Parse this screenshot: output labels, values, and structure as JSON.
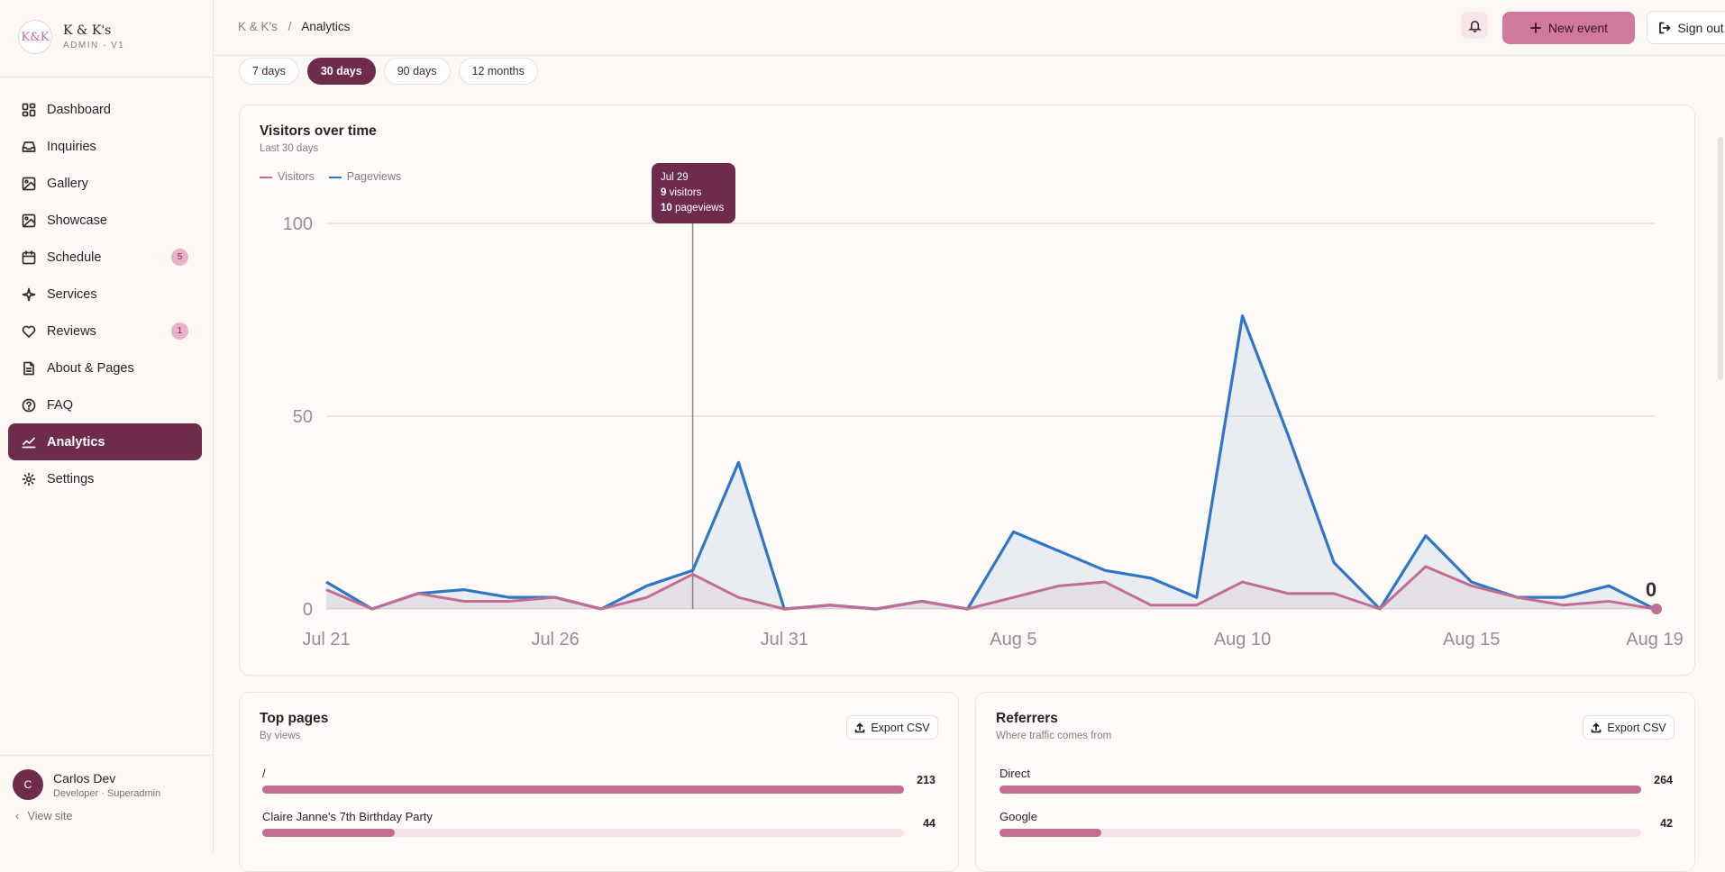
{
  "brand": {
    "name": "K & K's",
    "sub": "ADMIN · V1",
    "logo_text": "K&K"
  },
  "sidebar": {
    "items": [
      {
        "label": "Dashboard",
        "icon": "dashboard-icon"
      },
      {
        "label": "Inquiries",
        "icon": "inbox-icon"
      },
      {
        "label": "Gallery",
        "icon": "image-icon"
      },
      {
        "label": "Showcase",
        "icon": "image-icon"
      },
      {
        "label": "Schedule",
        "icon": "calendar-icon",
        "badge": "5"
      },
      {
        "label": "Services",
        "icon": "sparkle-icon"
      },
      {
        "label": "Reviews",
        "icon": "heart-icon",
        "badge": "1"
      },
      {
        "label": "About & Pages",
        "icon": "document-icon"
      },
      {
        "label": "FAQ",
        "icon": "help-circle-icon"
      },
      {
        "label": "Analytics",
        "icon": "chart-line-icon",
        "active": true
      },
      {
        "label": "Settings",
        "icon": "gear-icon"
      }
    ]
  },
  "user": {
    "initial": "C",
    "name": "Carlos Dev",
    "role": "Developer · Superadmin",
    "view_site": "View site"
  },
  "header": {
    "breadcrumb_root": "K & K's",
    "breadcrumb_sep": "/",
    "breadcrumb_current": "Analytics",
    "new_event_label": "New event",
    "sign_out_label": "Sign out"
  },
  "ranges": [
    {
      "label": "7 days"
    },
    {
      "label": "30 days",
      "active": true
    },
    {
      "label": "90 days"
    },
    {
      "label": "12 months"
    }
  ],
  "visitors_card": {
    "title": "Visitors over time",
    "subtitle": "Last 30 days",
    "tooltip": {
      "date": "Jul 29",
      "visitors_num": "9",
      "visitors_word": "visitors",
      "pageviews_num": "10",
      "pageviews_word": "pageviews"
    },
    "end_label": "0"
  },
  "chart_data": {
    "type": "area",
    "x": [
      "Jul 21",
      "Jul 22",
      "Jul 23",
      "Jul 24",
      "Jul 25",
      "Jul 26",
      "Jul 27",
      "Jul 28",
      "Jul 29",
      "Jul 30",
      "Jul 31",
      "Aug 1",
      "Aug 2",
      "Aug 3",
      "Aug 4",
      "Aug 5",
      "Aug 6",
      "Aug 7",
      "Aug 8",
      "Aug 9",
      "Aug 10",
      "Aug 11",
      "Aug 12",
      "Aug 13",
      "Aug 14",
      "Aug 15",
      "Aug 16",
      "Aug 17",
      "Aug 18",
      "Aug 19"
    ],
    "x_tick_labels": [
      "Jul 21",
      "Jul 26",
      "Jul 31",
      "Aug 5",
      "Aug 10",
      "Aug 15",
      "Aug 19"
    ],
    "series": [
      {
        "name": "Visitors",
        "color": "#c46d93",
        "values": [
          5,
          0,
          4,
          2,
          2,
          3,
          0,
          3,
          9,
          3,
          0,
          1,
          0,
          2,
          0,
          3,
          6,
          7,
          1,
          1,
          7,
          4,
          4,
          0,
          11,
          6,
          3,
          1,
          2,
          0
        ]
      },
      {
        "name": "Pageviews",
        "color": "#2f76c6",
        "values": [
          7,
          0,
          4,
          5,
          3,
          3,
          0,
          6,
          10,
          38,
          0,
          1,
          0,
          2,
          0,
          20,
          15,
          10,
          8,
          3,
          76,
          45,
          12,
          0,
          19,
          7,
          3,
          3,
          6,
          0
        ]
      }
    ],
    "ylim": [
      0,
      100
    ],
    "y_ticks": [
      0,
      50,
      100
    ],
    "grid": true,
    "legend": "top-left",
    "highlight_x": "Jul 29"
  },
  "top_pages": {
    "title": "Top pages",
    "subtitle": "By views",
    "export_label": "Export CSV",
    "rows": [
      {
        "label": "/",
        "value": "213",
        "fraction": 1.0
      },
      {
        "label": "Claire Janne's 7th Birthday Party",
        "value": "44",
        "fraction": 0.207
      }
    ]
  },
  "referrers": {
    "title": "Referrers",
    "subtitle": "Where traffic comes from",
    "export_label": "Export CSV",
    "rows": [
      {
        "label": "Direct",
        "value": "264",
        "fraction": 1.0
      },
      {
        "label": "Google",
        "value": "42",
        "fraction": 0.159
      }
    ]
  }
}
